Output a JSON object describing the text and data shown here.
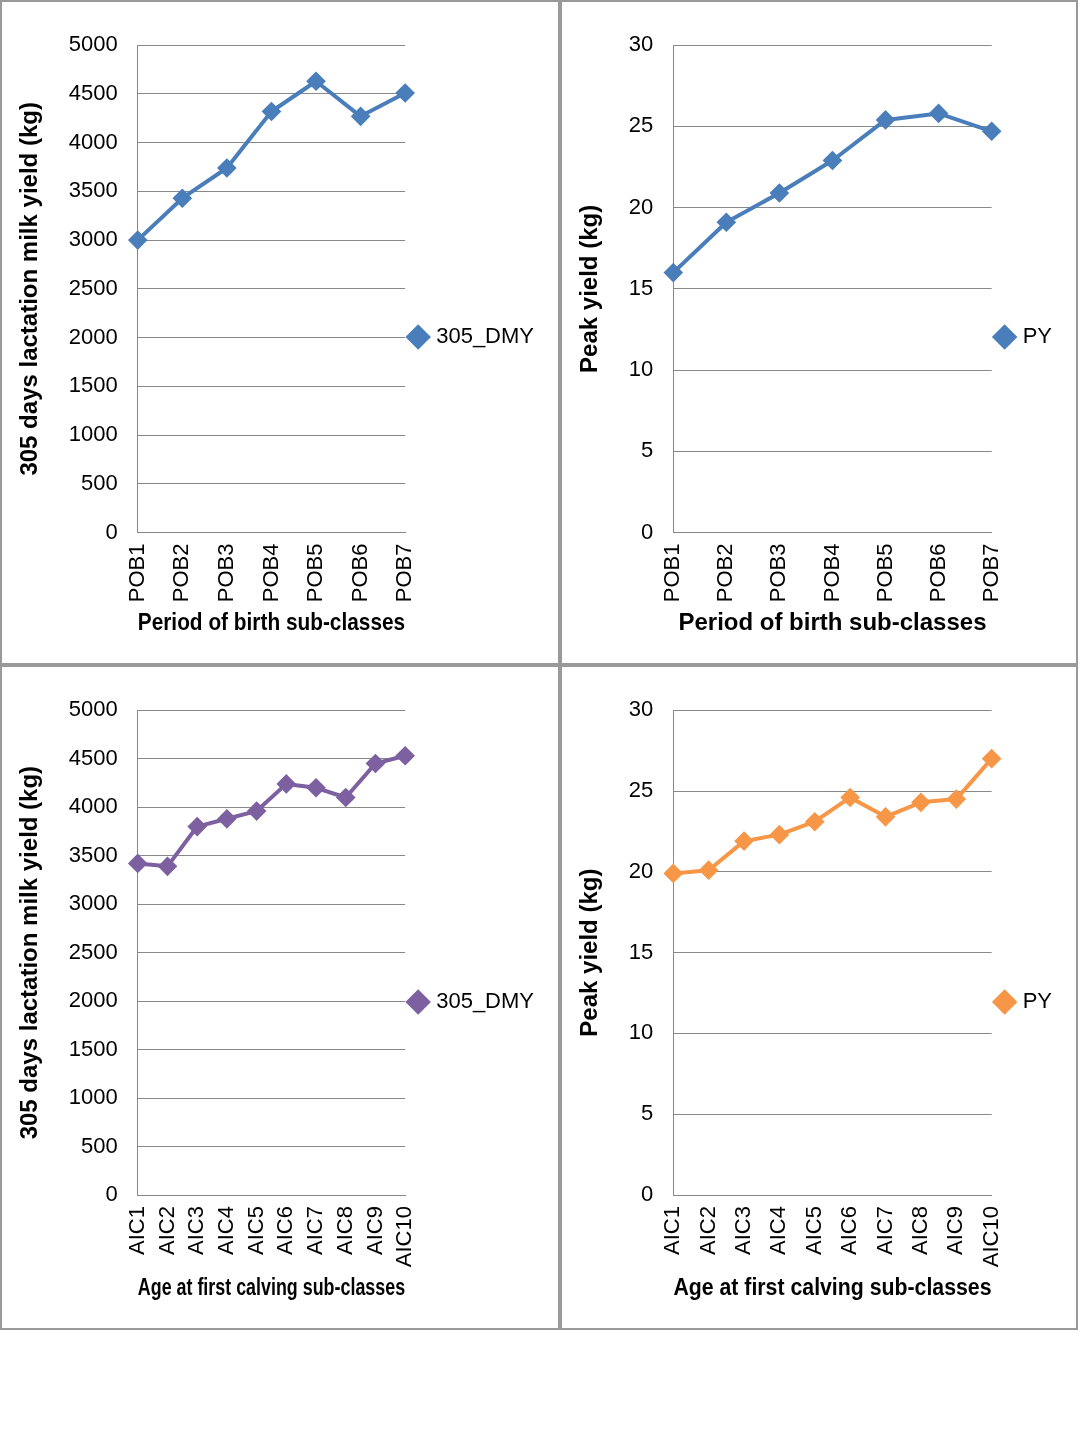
{
  "chart_data": [
    {
      "type": "line",
      "xlabel": "Period of birth sub-classes",
      "ylabel": "305 days lactation milk yield (kg)",
      "categories": [
        "POB1",
        "POB2",
        "POB3",
        "POB4",
        "POB5",
        "POB6",
        "POB7"
      ],
      "series": [
        {
          "name": "305_DMY",
          "color": "#4a7ebb",
          "values": [
            3000,
            3430,
            3740,
            4320,
            4630,
            4270,
            4510
          ]
        }
      ],
      "ylim": [
        0,
        5000
      ],
      "yticks": [
        0,
        500,
        1000,
        1500,
        2000,
        2500,
        3000,
        3500,
        4000,
        4500,
        5000
      ],
      "grid": "y",
      "legend": "right",
      "marker": "diamond"
    },
    {
      "type": "line",
      "xlabel": "Period of birth sub-classes",
      "ylabel": "Peak yield (kg)",
      "categories": [
        "POB1",
        "POB2",
        "POB3",
        "POB4",
        "POB5",
        "POB6",
        "POB7"
      ],
      "series": [
        {
          "name": "PY",
          "color": "#4a7ebb",
          "values": [
            16.0,
            19.1,
            20.9,
            22.9,
            25.4,
            25.8,
            24.7
          ]
        }
      ],
      "ylim": [
        0,
        30
      ],
      "yticks": [
        0,
        5,
        10,
        15,
        20,
        25,
        30
      ],
      "grid": "y",
      "legend": "right",
      "marker": "diamond"
    },
    {
      "type": "line",
      "xlabel": "Age at first calving sub-classes",
      "ylabel": "305 days lactation milk yield (kg)",
      "categories": [
        "AIC1",
        "AIC2",
        "AIC3",
        "AIC4",
        "AIC5",
        "AIC6",
        "AIC7",
        "AIC8",
        "AIC9",
        "AIC10"
      ],
      "series": [
        {
          "name": "305_DMY",
          "color": "#7d60a0",
          "values": [
            3420,
            3390,
            3800,
            3880,
            3960,
            4240,
            4200,
            4100,
            4450,
            4530
          ]
        }
      ],
      "ylim": [
        0,
        5000
      ],
      "yticks": [
        0,
        500,
        1000,
        1500,
        2000,
        2500,
        3000,
        3500,
        4000,
        4500,
        5000
      ],
      "grid": "y",
      "legend": "right",
      "marker": "diamond"
    },
    {
      "type": "line",
      "xlabel": "Age at first calving sub-classes",
      "ylabel": "Peak yield (kg)",
      "categories": [
        "AIC1",
        "AIC2",
        "AIC3",
        "AIC4",
        "AIC5",
        "AIC6",
        "AIC7",
        "AIC8",
        "AIC9",
        "AIC10"
      ],
      "series": [
        {
          "name": "PY",
          "color": "#f79646",
          "values": [
            19.9,
            20.1,
            21.9,
            22.3,
            23.1,
            24.6,
            23.4,
            24.3,
            24.5,
            27.0
          ]
        }
      ],
      "ylim": [
        0,
        30
      ],
      "yticks": [
        0,
        5,
        10,
        15,
        20,
        25,
        30
      ],
      "grid": "y",
      "legend": "right",
      "marker": "diamond"
    }
  ]
}
